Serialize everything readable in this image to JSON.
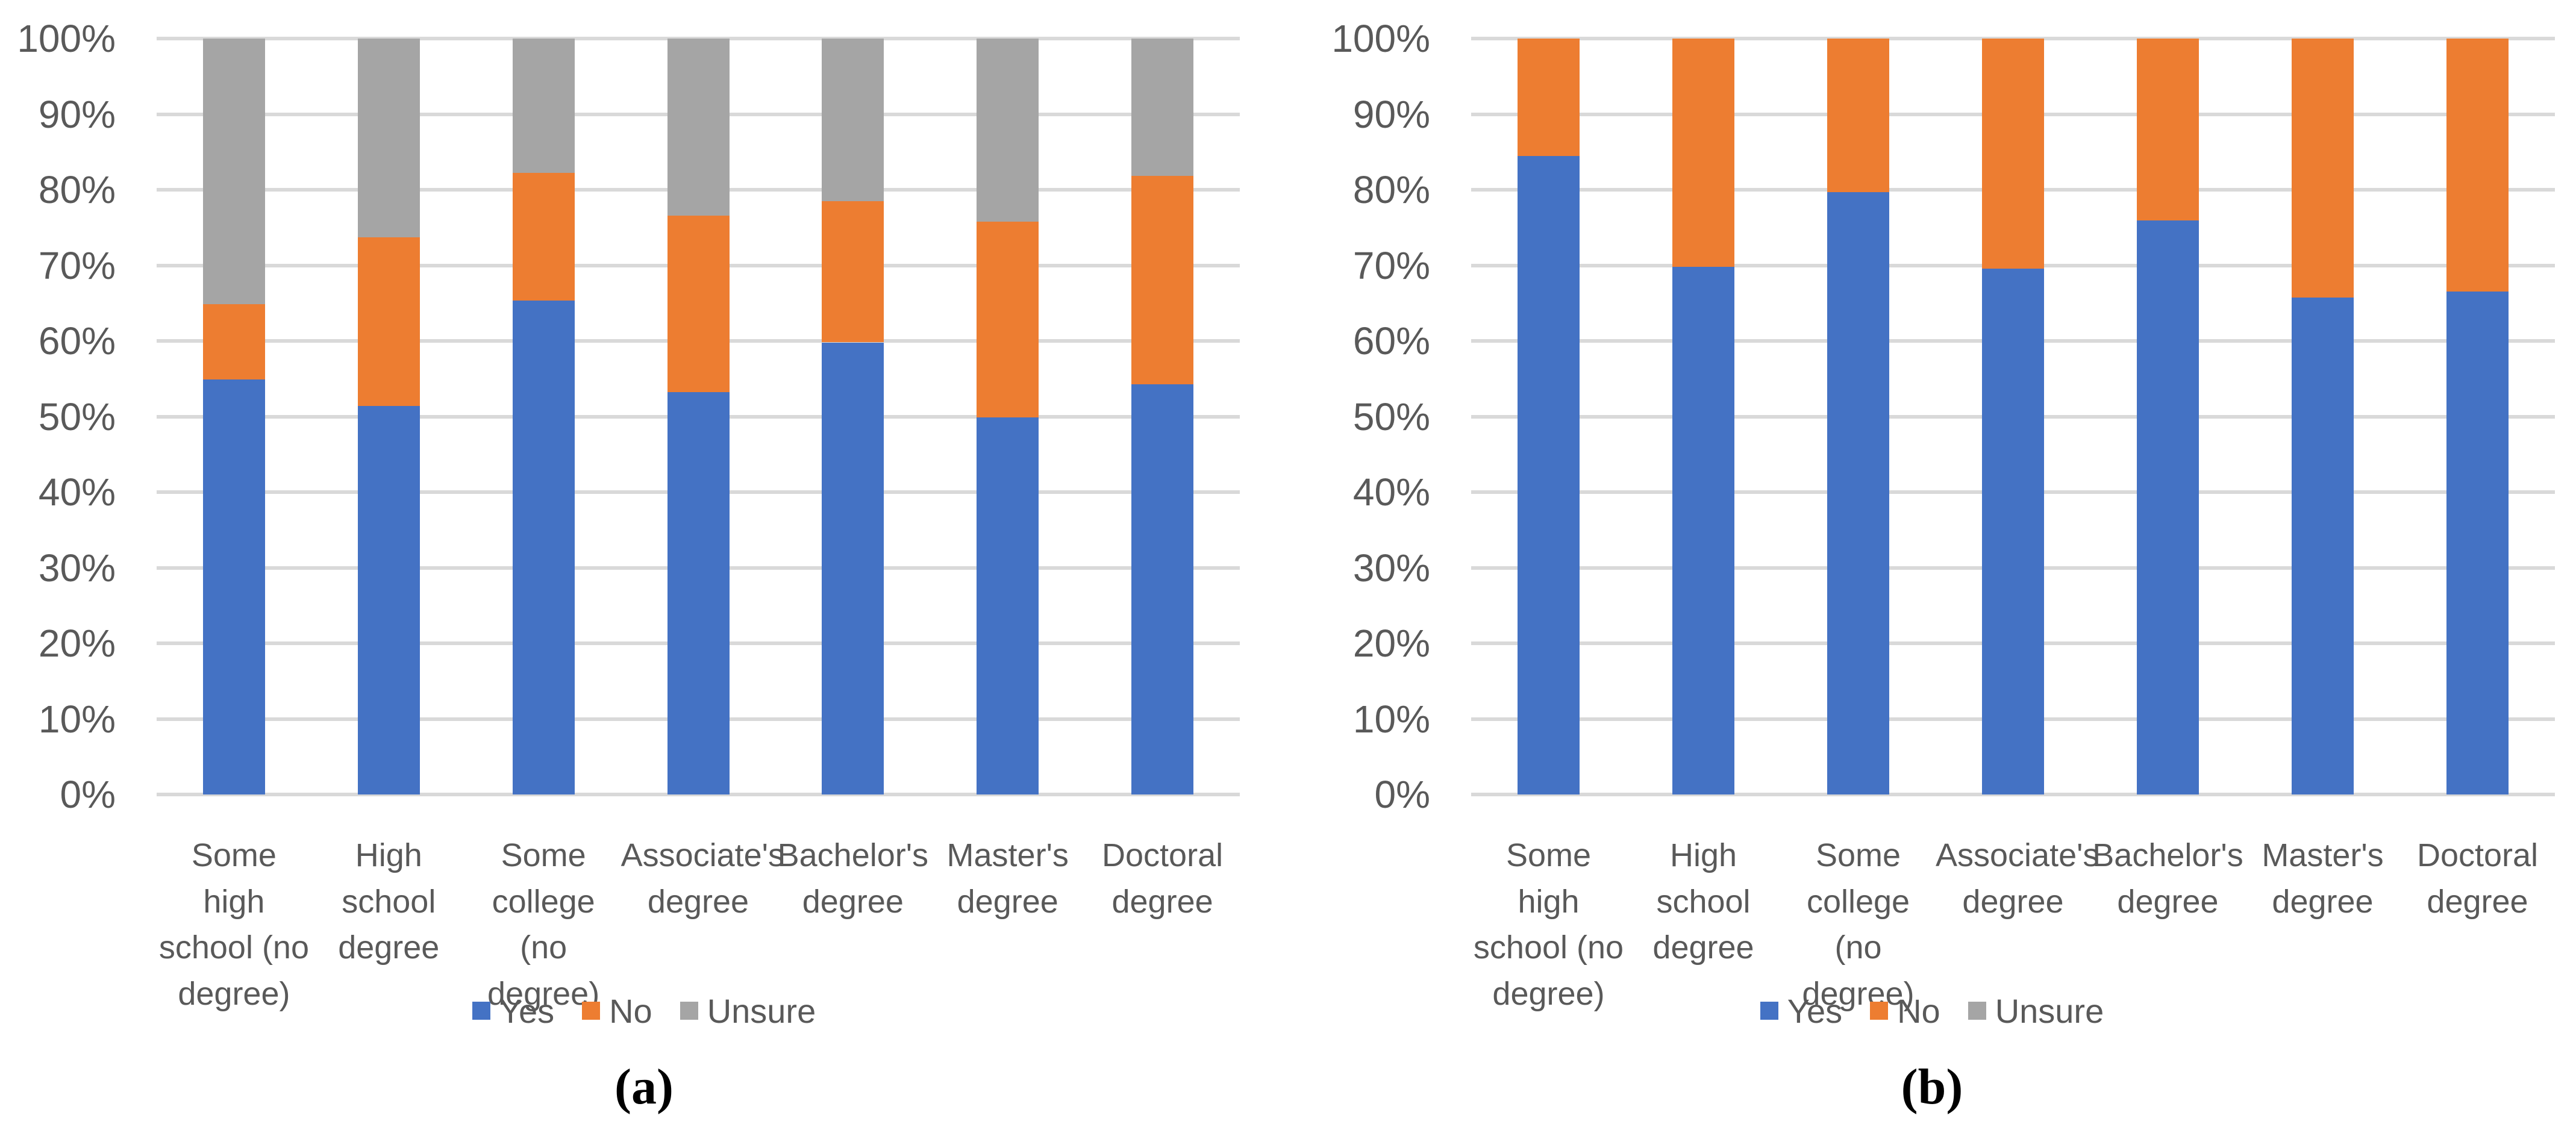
{
  "styles": {
    "background": "#FFFFFF",
    "text_color": "#595959",
    "gridline_color": "#D9D9D9",
    "caption_color": "#000000",
    "series_colors": {
      "Yes": "#4472C4",
      "No": "#ED7D31",
      "Unsure": "#A5A5A5"
    }
  },
  "chart_data": [
    {
      "type": "bar",
      "stacked": true,
      "percent_axis": true,
      "caption": "(a)",
      "grid": true,
      "legend_position": "bottom",
      "ylim": [
        0,
        100
      ],
      "y_ticks": [
        "0%",
        "10%",
        "20%",
        "30%",
        "40%",
        "50%",
        "60%",
        "70%",
        "80%",
        "90%",
        "100%"
      ],
      "categories": [
        "Some high\nschool (no\ndegree)",
        "High\nschool\ndegree",
        "Some\ncollege (no\ndegree)",
        "Associate's\ndegree",
        "Bachelor's\ndegree",
        "Master's\ndegree",
        "Doctoral\ndegree"
      ],
      "series": [
        {
          "name": "Yes",
          "color": "#4472C4",
          "values": [
            54.9,
            51.4,
            65.3,
            53.2,
            59.8,
            49.9,
            54.3
          ]
        },
        {
          "name": "No",
          "color": "#ED7D31",
          "values": [
            10.0,
            22.3,
            16.9,
            23.4,
            18.7,
            25.9,
            27.5
          ]
        },
        {
          "name": "Unsure",
          "color": "#A5A5A5",
          "values": [
            35.1,
            26.3,
            17.8,
            23.4,
            21.5,
            24.2,
            18.2
          ]
        }
      ]
    },
    {
      "type": "bar",
      "stacked": true,
      "percent_axis": true,
      "caption": "(b)",
      "grid": true,
      "legend_position": "bottom",
      "ylim": [
        0,
        100
      ],
      "y_ticks": [
        "0%",
        "10%",
        "20%",
        "30%",
        "40%",
        "50%",
        "60%",
        "70%",
        "80%",
        "90%",
        "100%"
      ],
      "categories": [
        "Some high\nschool (no\ndegree)",
        "High\nschool\ndegree",
        "Some\ncollege (no\ndegree)",
        "Associate's\ndegree",
        "Bachelor's\ndegree",
        "Master's\ndegree",
        "Doctoral\ndegree"
      ],
      "series": [
        {
          "name": "Yes",
          "color": "#4472C4",
          "values": [
            84.5,
            69.8,
            79.7,
            69.6,
            75.9,
            65.7,
            66.5
          ]
        },
        {
          "name": "No",
          "color": "#ED7D31",
          "values": [
            15.5,
            30.2,
            20.3,
            30.4,
            24.1,
            34.3,
            33.5
          ]
        },
        {
          "name": "Unsure",
          "color": "#A5A5A5",
          "values": [
            0,
            0,
            0,
            0,
            0,
            0,
            0
          ]
        }
      ]
    }
  ]
}
